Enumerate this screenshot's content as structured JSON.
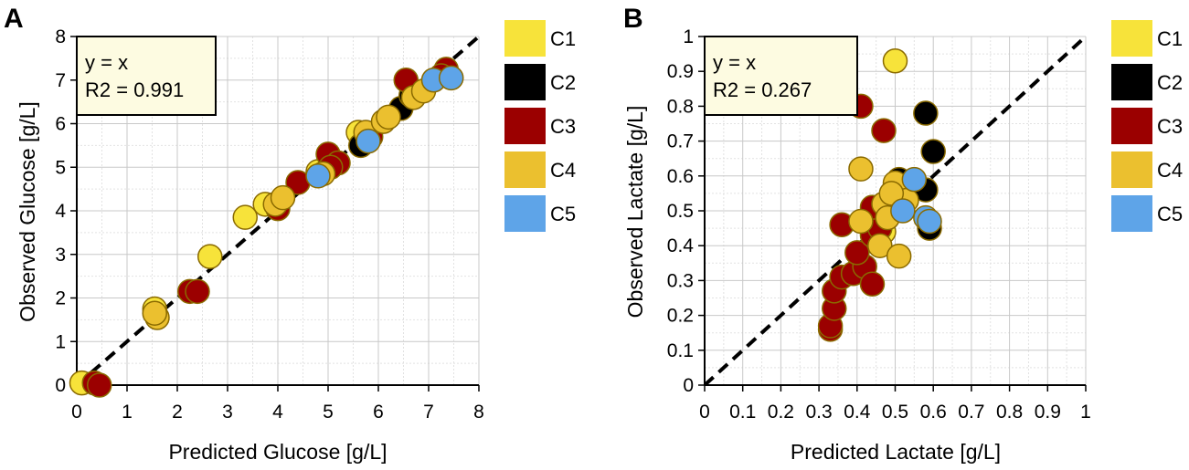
{
  "chart_data": [
    {
      "type": "scatter",
      "panel_label": "A",
      "xlabel": "Predicted Glucose [g/L]",
      "ylabel": "Observed Glucose [g/L]",
      "xlim": [
        0,
        8
      ],
      "ylim": [
        0,
        8
      ],
      "xticks": [
        "0",
        "1",
        "2",
        "3",
        "4",
        "5",
        "6",
        "7",
        "8"
      ],
      "yticks": [
        "0",
        "1",
        "2",
        "3",
        "4",
        "5",
        "6",
        "7",
        "8"
      ],
      "grid": true,
      "reference_line": {
        "type": "identity",
        "style": "dashed"
      },
      "annotation": [
        "y = x",
        "R2 = 0.991"
      ],
      "legend_position": "right",
      "series": [
        {
          "name": "C1",
          "color": "#f7e33a",
          "points": [
            [
              0.1,
              0.05
            ],
            [
              1.55,
              1.75
            ],
            [
              2.65,
              2.95
            ],
            [
              3.35,
              3.85
            ],
            [
              3.75,
              4.15
            ],
            [
              4.8,
              4.9
            ],
            [
              5.6,
              5.8
            ]
          ]
        },
        {
          "name": "C2",
          "color": "#000000",
          "points": [
            [
              5.65,
              5.5
            ],
            [
              6.45,
              6.35
            ],
            [
              6.65,
              6.65
            ]
          ]
        },
        {
          "name": "C3",
          "color": "#9b0000",
          "points": [
            [
              0.35,
              0.05
            ],
            [
              0.45,
              0.0
            ],
            [
              2.25,
              2.15
            ],
            [
              2.4,
              2.15
            ],
            [
              4.0,
              4.05
            ],
            [
              4.4,
              4.65
            ],
            [
              5.0,
              5.3
            ],
            [
              5.2,
              5.1
            ],
            [
              5.05,
              5.0
            ],
            [
              5.85,
              5.7
            ],
            [
              6.55,
              7.0
            ],
            [
              7.35,
              7.25
            ],
            [
              7.25,
              7.1
            ]
          ]
        },
        {
          "name": "C4",
          "color": "#ebc02f",
          "points": [
            [
              1.6,
              1.55
            ],
            [
              1.55,
              1.65
            ],
            [
              3.95,
              4.15
            ],
            [
              4.1,
              4.3
            ],
            [
              4.9,
              4.85
            ],
            [
              5.75,
              5.8
            ],
            [
              6.1,
              6.05
            ],
            [
              6.2,
              6.15
            ],
            [
              6.7,
              6.6
            ],
            [
              6.9,
              6.75
            ]
          ]
        },
        {
          "name": "C5",
          "color": "#5ea4e8",
          "points": [
            [
              4.8,
              4.8
            ],
            [
              5.8,
              5.6
            ],
            [
              7.1,
              7.0
            ],
            [
              7.45,
              7.05
            ]
          ]
        }
      ]
    },
    {
      "type": "scatter",
      "panel_label": "B",
      "xlabel": "Predicted Lactate [g/L]",
      "ylabel": "Observed Lactate [g/L]",
      "xlim": [
        0,
        1
      ],
      "ylim": [
        0,
        1
      ],
      "xticks": [
        "0",
        "0.1",
        "0.2",
        "0.3",
        "0.4",
        "0.5",
        "0.6",
        "0.7",
        "0.8",
        "0.9",
        "1"
      ],
      "yticks": [
        "0",
        "0.1",
        "0.2",
        "0.3",
        "0.4",
        "0.5",
        "0.6",
        "0.7",
        "0.8",
        "0.9",
        "1"
      ],
      "grid": true,
      "reference_line": {
        "type": "identity",
        "style": "dashed"
      },
      "annotation": [
        "y = x",
        "R2 = 0.267"
      ],
      "legend_position": "right",
      "series": [
        {
          "name": "C1",
          "color": "#f7e33a",
          "points": [
            [
              0.5,
              0.93
            ],
            [
              0.47,
              0.44
            ],
            [
              0.49,
              0.5
            ],
            [
              0.52,
              0.55
            ]
          ]
        },
        {
          "name": "C2",
          "color": "#000000",
          "points": [
            [
              0.58,
              0.78
            ],
            [
              0.6,
              0.67
            ],
            [
              0.51,
              0.59
            ],
            [
              0.58,
              0.56
            ],
            [
              0.59,
              0.45
            ]
          ]
        },
        {
          "name": "C3",
          "color": "#9b0000",
          "points": [
            [
              0.41,
              0.8
            ],
            [
              0.47,
              0.73
            ],
            [
              0.36,
              0.46
            ],
            [
              0.33,
              0.16
            ],
            [
              0.33,
              0.17
            ],
            [
              0.34,
              0.22
            ],
            [
              0.34,
              0.27
            ],
            [
              0.36,
              0.31
            ],
            [
              0.39,
              0.32
            ],
            [
              0.42,
              0.34
            ],
            [
              0.44,
              0.29
            ],
            [
              0.4,
              0.38
            ],
            [
              0.44,
              0.43
            ],
            [
              0.46,
              0.45
            ],
            [
              0.44,
              0.51
            ]
          ]
        },
        {
          "name": "C4",
          "color": "#ebc02f",
          "points": [
            [
              0.41,
              0.62
            ],
            [
              0.41,
              0.47
            ],
            [
              0.46,
              0.4
            ],
            [
              0.51,
              0.37
            ],
            [
              0.47,
              0.52
            ],
            [
              0.48,
              0.48
            ],
            [
              0.5,
              0.58
            ],
            [
              0.53,
              0.53
            ],
            [
              0.49,
              0.55
            ]
          ]
        },
        {
          "name": "C5",
          "color": "#5ea4e8",
          "points": [
            [
              0.55,
              0.59
            ],
            [
              0.52,
              0.5
            ],
            [
              0.58,
              0.48
            ],
            [
              0.59,
              0.47
            ]
          ]
        }
      ]
    }
  ]
}
